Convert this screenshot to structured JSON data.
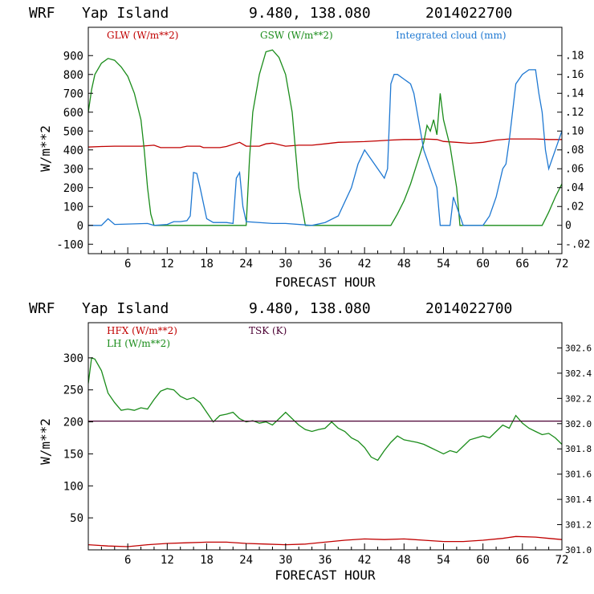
{
  "colors": {
    "glw": "#c00000",
    "gsw": "#1a8c1a",
    "cloud": "#1e78d2",
    "hfx": "#c00000",
    "lh": "#1a8c1a",
    "tsk": "#4b0033",
    "axis": "#000000"
  },
  "chart_data": [
    {
      "type": "line",
      "header": {
        "model": "WRF",
        "station": "Yap Island",
        "coords": "9.480, 138.080",
        "init": "2014022700"
      },
      "xlabel": "FORECAST HOUR",
      "ylabel": "W/m**2",
      "xlim": [
        0,
        72
      ],
      "ylim": [
        -150,
        1050
      ],
      "ylim_right": [
        -0.03,
        0.21
      ],
      "xticks": [
        "6",
        "12",
        "18",
        "24",
        "30",
        "36",
        "42",
        "48",
        "54",
        "60",
        "66",
        "72"
      ],
      "yticks": [
        "-100",
        "0",
        "100",
        "200",
        "300",
        "400",
        "500",
        "600",
        "700",
        "800",
        "900"
      ],
      "yticks_right": [
        ".18",
        ".16",
        ".14",
        ".12",
        ".10",
        ".08",
        ".06",
        ".04",
        ".02",
        "0",
        "-.02"
      ],
      "series": [
        {
          "name": "GLW (W/m**2)",
          "axis": "left",
          "points": [
            [
              0,
              415
            ],
            [
              2,
              418
            ],
            [
              4,
              420
            ],
            [
              6,
              420
            ],
            [
              8,
              420
            ],
            [
              10,
              425
            ],
            [
              11,
              412
            ],
            [
              14,
              412
            ],
            [
              15,
              420
            ],
            [
              17,
              420
            ],
            [
              17.5,
              412
            ],
            [
              18,
              412
            ],
            [
              20,
              412
            ],
            [
              21,
              418
            ],
            [
              23,
              440
            ],
            [
              24,
              420
            ],
            [
              26,
              420
            ],
            [
              27,
              432
            ],
            [
              28,
              436
            ],
            [
              30,
              420
            ],
            [
              32,
              425
            ],
            [
              34,
              425
            ],
            [
              36,
              432
            ],
            [
              38,
              440
            ],
            [
              40,
              442
            ],
            [
              42,
              444
            ],
            [
              44,
              448
            ],
            [
              46,
              452
            ],
            [
              48,
              455
            ],
            [
              50,
              455
            ],
            [
              51,
              458
            ],
            [
              53,
              455
            ],
            [
              54,
              445
            ],
            [
              56,
              440
            ],
            [
              58,
              435
            ],
            [
              60,
              440
            ],
            [
              62,
              452
            ],
            [
              64,
              458
            ],
            [
              66,
              458
            ],
            [
              68,
              458
            ],
            [
              70,
              455
            ],
            [
              72,
              455
            ]
          ]
        },
        {
          "name": "GSW (W/m**2)",
          "axis": "left",
          "points": [
            [
              0,
              600
            ],
            [
              0.5,
              720
            ],
            [
              1,
              800
            ],
            [
              2,
              860
            ],
            [
              3,
              885
            ],
            [
              4,
              875
            ],
            [
              5,
              840
            ],
            [
              6,
              790
            ],
            [
              7,
              700
            ],
            [
              8,
              560
            ],
            [
              8.5,
              400
            ],
            [
              9,
              200
            ],
            [
              9.5,
              60
            ],
            [
              10,
              0
            ],
            [
              24,
              0
            ],
            [
              24.5,
              350
            ],
            [
              25,
              600
            ],
            [
              26,
              800
            ],
            [
              27,
              920
            ],
            [
              28,
              930
            ],
            [
              29,
              890
            ],
            [
              30,
              800
            ],
            [
              31,
              600
            ],
            [
              31.5,
              400
            ],
            [
              32,
              200
            ],
            [
              33,
              0
            ],
            [
              46,
              0
            ],
            [
              47,
              60
            ],
            [
              48,
              130
            ],
            [
              49,
              220
            ],
            [
              50,
              330
            ],
            [
              51,
              440
            ],
            [
              51.5,
              530
            ],
            [
              52,
              500
            ],
            [
              52.5,
              560
            ],
            [
              53,
              480
            ],
            [
              53.5,
              700
            ],
            [
              54,
              560
            ],
            [
              55,
              420
            ],
            [
              56,
              200
            ],
            [
              56.5,
              0
            ],
            [
              69,
              0
            ],
            [
              70,
              70
            ],
            [
              71,
              150
            ],
            [
              72,
              220
            ]
          ]
        },
        {
          "name": "Integrated cloud (mm)",
          "axis": "right",
          "points": [
            [
              0,
              0
            ],
            [
              2,
              0
            ],
            [
              3,
              0.007
            ],
            [
              4,
              0.001
            ],
            [
              9,
              0.002
            ],
            [
              10,
              0
            ],
            [
              12,
              0.001
            ],
            [
              13,
              0.004
            ],
            [
              14,
              0.004
            ],
            [
              15,
              0.005
            ],
            [
              15.5,
              0.01
            ],
            [
              16,
              0.056
            ],
            [
              16.5,
              0.055
            ],
            [
              17,
              0.04
            ],
            [
              18,
              0.007
            ],
            [
              19,
              0.003
            ],
            [
              21,
              0.003
            ],
            [
              22,
              0.002
            ],
            [
              22.5,
              0.05
            ],
            [
              23,
              0.056
            ],
            [
              23.5,
              0.02
            ],
            [
              24,
              0.004
            ],
            [
              28,
              0.002
            ],
            [
              30,
              0.002
            ],
            [
              34,
              0
            ],
            [
              36,
              0.003
            ],
            [
              38,
              0.01
            ],
            [
              40,
              0.04
            ],
            [
              41,
              0.065
            ],
            [
              42,
              0.08
            ],
            [
              43,
              0.07
            ],
            [
              44,
              0.06
            ],
            [
              45,
              0.05
            ],
            [
              45.5,
              0.06
            ],
            [
              46,
              0.15
            ],
            [
              46.5,
              0.16
            ],
            [
              47,
              0.16
            ],
            [
              48,
              0.155
            ],
            [
              49,
              0.15
            ],
            [
              49.5,
              0.14
            ],
            [
              50,
              0.12
            ],
            [
              51,
              0.08
            ],
            [
              51.5,
              0.07
            ],
            [
              52,
              0.06
            ],
            [
              53,
              0.04
            ],
            [
              53.5,
              0
            ],
            [
              55,
              0
            ],
            [
              55.5,
              0.03
            ],
            [
              56,
              0.02
            ],
            [
              57,
              0
            ],
            [
              59,
              0
            ],
            [
              60,
              0
            ],
            [
              61,
              0.01
            ],
            [
              62,
              0.03
            ],
            [
              63,
              0.06
            ],
            [
              63.5,
              0.065
            ],
            [
              64,
              0.09
            ],
            [
              64.5,
              0.12
            ],
            [
              65,
              0.15
            ],
            [
              66,
              0.16
            ],
            [
              67,
              0.165
            ],
            [
              68,
              0.165
            ],
            [
              68.5,
              0.14
            ],
            [
              69,
              0.12
            ],
            [
              69.5,
              0.08
            ],
            [
              70,
              0.06
            ],
            [
              70.5,
              0.07
            ],
            [
              71,
              0.08
            ],
            [
              72,
              0.1
            ]
          ]
        }
      ]
    },
    {
      "type": "line",
      "header": {
        "model": "WRF",
        "station": "Yap Island",
        "coords": "9.480, 138.080",
        "init": "2014022700"
      },
      "xlabel": "FORECAST HOUR",
      "ylabel": "W/m**2",
      "xlim": [
        0,
        72
      ],
      "ylim": [
        0,
        355
      ],
      "ylim_right": [
        301.0,
        302.8
      ],
      "xticks": [
        "6",
        "12",
        "18",
        "24",
        "30",
        "36",
        "42",
        "48",
        "54",
        "60",
        "66",
        "72"
      ],
      "yticks": [
        "50",
        "100",
        "150",
        "200",
        "250",
        "300"
      ],
      "yticks_right": [
        "302.6",
        "302.4",
        "302.2",
        "302.0",
        "301.8",
        "301.6",
        "301.4",
        "301.2",
        "301.0"
      ],
      "series": [
        {
          "name": "HFX (W/m**2)",
          "axis": "left",
          "points": [
            [
              0,
              8
            ],
            [
              3,
              6
            ],
            [
              6,
              5
            ],
            [
              9,
              8
            ],
            [
              12,
              10
            ],
            [
              15,
              11
            ],
            [
              18,
              12
            ],
            [
              21,
              12
            ],
            [
              24,
              10
            ],
            [
              27,
              9
            ],
            [
              30,
              8
            ],
            [
              33,
              9
            ],
            [
              36,
              12
            ],
            [
              39,
              15
            ],
            [
              42,
              17
            ],
            [
              45,
              16
            ],
            [
              48,
              17
            ],
            [
              51,
              15
            ],
            [
              54,
              13
            ],
            [
              57,
              13
            ],
            [
              60,
              15
            ],
            [
              63,
              18
            ],
            [
              65,
              21
            ],
            [
              68,
              20
            ],
            [
              70,
              18
            ],
            [
              72,
              16
            ]
          ]
        },
        {
          "name": "LH (W/m**2)",
          "axis": "left",
          "points": [
            [
              0,
              260
            ],
            [
              0.5,
              300
            ],
            [
              1,
              298
            ],
            [
              2,
              280
            ],
            [
              3,
              245
            ],
            [
              4,
              230
            ],
            [
              5,
              218
            ],
            [
              6,
              220
            ],
            [
              7,
              218
            ],
            [
              8,
              222
            ],
            [
              9,
              220
            ],
            [
              10,
              235
            ],
            [
              11,
              248
            ],
            [
              12,
              252
            ],
            [
              13,
              250
            ],
            [
              14,
              240
            ],
            [
              15,
              235
            ],
            [
              16,
              238
            ],
            [
              17,
              230
            ],
            [
              18,
              215
            ],
            [
              19,
              200
            ],
            [
              20,
              210
            ],
            [
              21,
              212
            ],
            [
              22,
              215
            ],
            [
              23,
              205
            ],
            [
              24,
              200
            ],
            [
              25,
              202
            ],
            [
              26,
              198
            ],
            [
              27,
              200
            ],
            [
              28,
              195
            ],
            [
              29,
              205
            ],
            [
              30,
              215
            ],
            [
              31,
              205
            ],
            [
              32,
              195
            ],
            [
              33,
              188
            ],
            [
              34,
              185
            ],
            [
              35,
              188
            ],
            [
              36,
              190
            ],
            [
              37,
              200
            ],
            [
              38,
              190
            ],
            [
              39,
              185
            ],
            [
              40,
              175
            ],
            [
              41,
              170
            ],
            [
              42,
              160
            ],
            [
              43,
              145
            ],
            [
              44,
              140
            ],
            [
              45,
              155
            ],
            [
              46,
              168
            ],
            [
              47,
              178
            ],
            [
              48,
              172
            ],
            [
              49,
              170
            ],
            [
              50,
              168
            ],
            [
              51,
              165
            ],
            [
              52,
              160
            ],
            [
              53,
              155
            ],
            [
              54,
              150
            ],
            [
              55,
              155
            ],
            [
              56,
              152
            ],
            [
              57,
              162
            ],
            [
              58,
              172
            ],
            [
              59,
              175
            ],
            [
              60,
              178
            ],
            [
              61,
              175
            ],
            [
              62,
              185
            ],
            [
              63,
              195
            ],
            [
              64,
              190
            ],
            [
              65,
              210
            ],
            [
              66,
              198
            ],
            [
              67,
              190
            ],
            [
              68,
              185
            ],
            [
              69,
              180
            ],
            [
              70,
              182
            ],
            [
              71,
              175
            ],
            [
              72,
              165
            ]
          ]
        },
        {
          "name": "TSK (K)",
          "axis": "right",
          "points": [
            [
              0,
              302.02
            ],
            [
              72,
              302.02
            ]
          ]
        }
      ]
    }
  ]
}
